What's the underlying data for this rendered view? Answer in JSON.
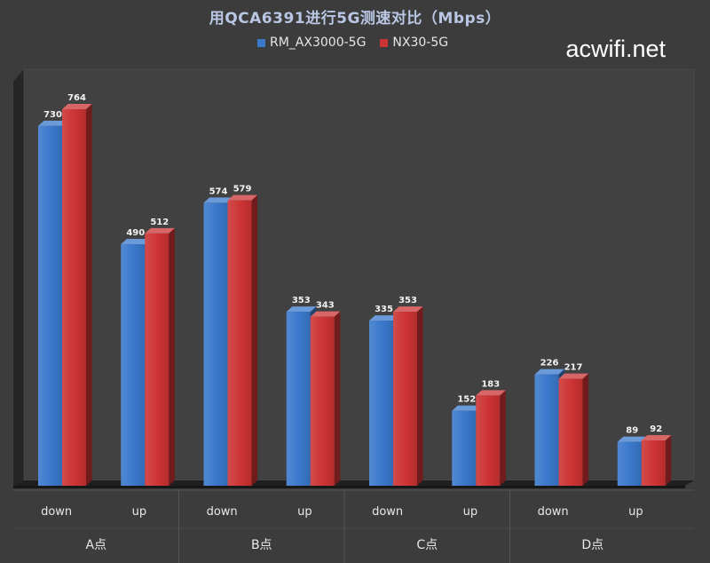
{
  "chart_data": {
    "type": "bar",
    "title": "用QCA6391进行5G测速对比（Mbps）",
    "groups": [
      "A点",
      "B点",
      "C点",
      "D点"
    ],
    "subcategories": [
      "down",
      "up"
    ],
    "categories": [
      "A点 down",
      "A点 up",
      "B点 down",
      "B点 up",
      "C点 down",
      "C点 up",
      "D点 down",
      "D点 up"
    ],
    "series": [
      {
        "name": "RM_AX3000-5G",
        "color": "#3a78cc",
        "values": [
          730,
          490,
          574,
          353,
          335,
          152,
          226,
          89
        ]
      },
      {
        "name": "NX30-5G",
        "color": "#cc3333",
        "values": [
          764,
          512,
          579,
          343,
          353,
          183,
          217,
          92
        ]
      }
    ],
    "ylim": [
      0,
      800
    ],
    "grid": false,
    "legend_position": "top-center",
    "style": "3d-column"
  },
  "watermark": "acwifi.net"
}
